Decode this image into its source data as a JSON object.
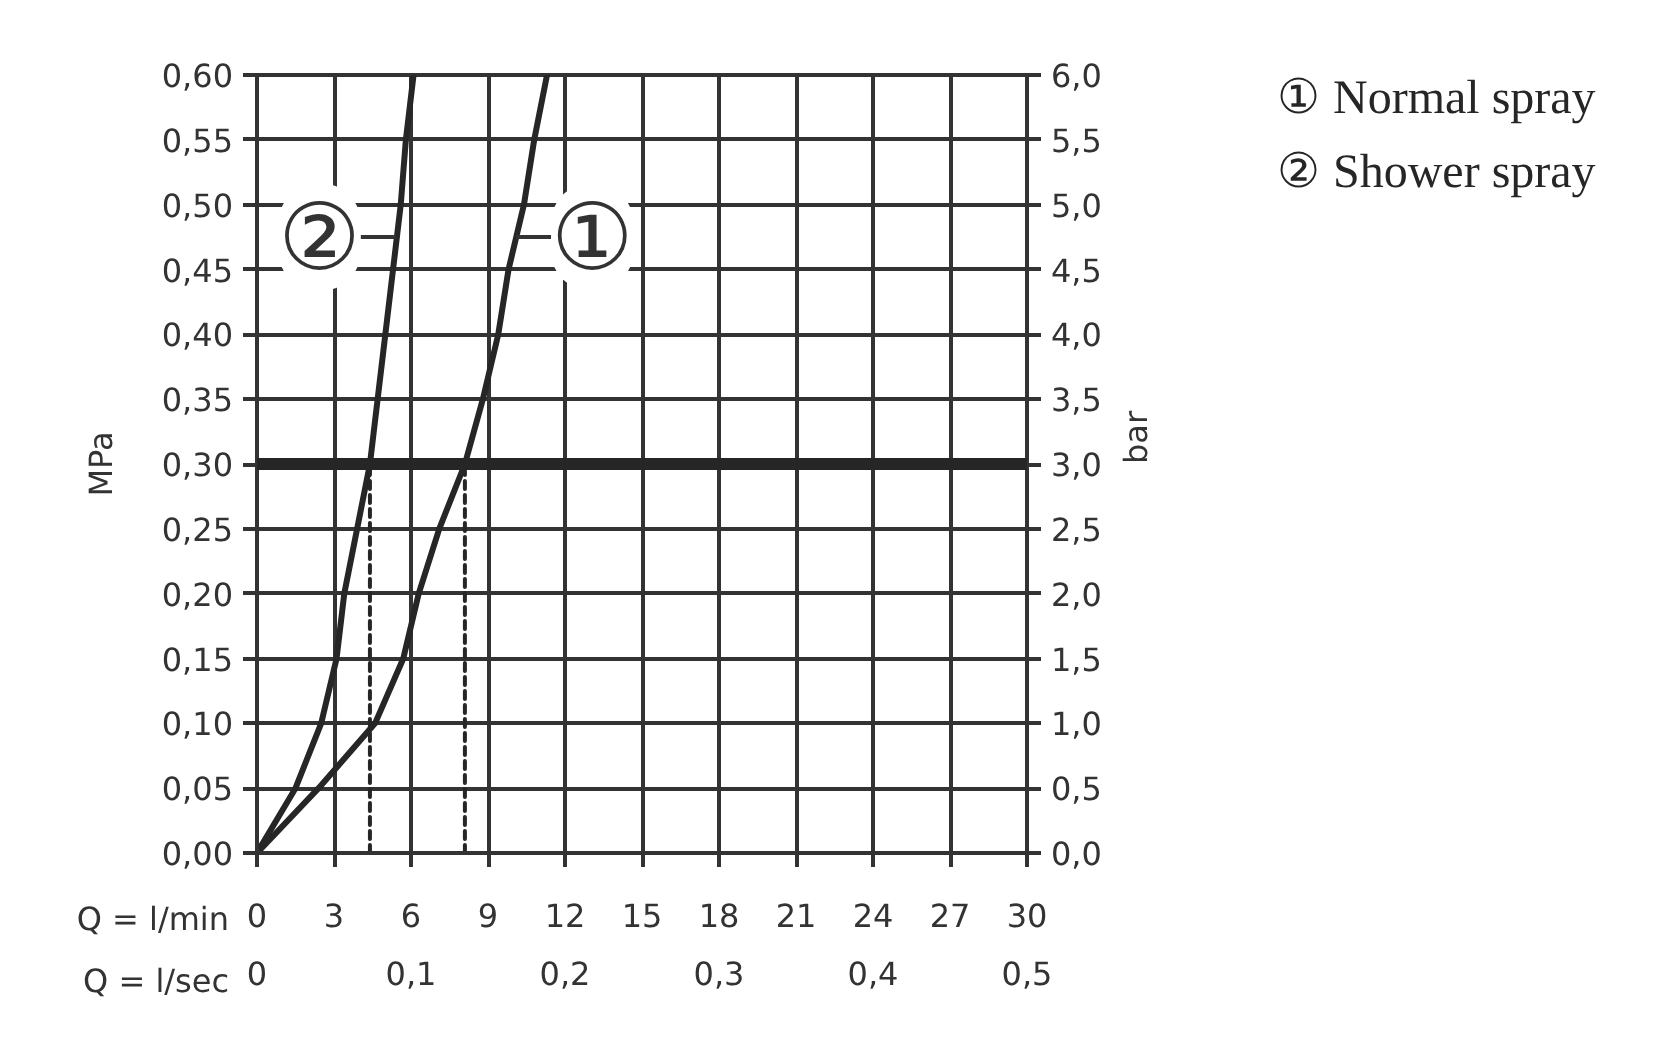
{
  "chart_data": {
    "type": "line",
    "xlabel": "Q = l/min",
    "x2label": "Q = l/sec",
    "ylabel": "MPa",
    "y2label": "bar",
    "xlim": [
      0,
      30
    ],
    "xticks": [
      0,
      3,
      6,
      9,
      12,
      15,
      18,
      21,
      24,
      27,
      30
    ],
    "x2lim": [
      0,
      0.5
    ],
    "x2ticks": [
      0,
      {
        "value": 0.1,
        "label": "0,1"
      },
      {
        "value": 0.2,
        "label": "0,2"
      },
      {
        "value": 0.3,
        "label": "0,3"
      },
      {
        "value": 0.4,
        "label": "0,4"
      },
      {
        "value": 0.5,
        "label": "0,5"
      }
    ],
    "ylim": [
      0,
      0.6
    ],
    "yticks": [
      {
        "value": 0,
        "label": "0,00"
      },
      {
        "value": 0.05,
        "label": "0,05"
      },
      {
        "value": 0.1,
        "label": "0,10"
      },
      {
        "value": 0.15,
        "label": "0,15"
      },
      {
        "value": 0.2,
        "label": "0,20"
      },
      {
        "value": 0.25,
        "label": "0,25"
      },
      {
        "value": 0.3,
        "label": "0,30"
      },
      {
        "value": 0.35,
        "label": "0,35"
      },
      {
        "value": 0.4,
        "label": "0,40"
      },
      {
        "value": 0.45,
        "label": "0,45"
      },
      {
        "value": 0.5,
        "label": "0,50"
      },
      {
        "value": 0.55,
        "label": "0,55"
      },
      {
        "value": 0.6,
        "label": "0,60"
      }
    ],
    "y2lim": [
      0,
      6
    ],
    "y2ticks": [
      {
        "value": 0,
        "label": "0,0"
      },
      {
        "value": 0.5,
        "label": "0,5"
      },
      {
        "value": 1,
        "label": "1,0"
      },
      {
        "value": 1.5,
        "label": "1,5"
      },
      {
        "value": 2,
        "label": "2,0"
      },
      {
        "value": 2.5,
        "label": "2,5"
      },
      {
        "value": 3,
        "label": "3,0"
      },
      {
        "value": 3.5,
        "label": "3,5"
      },
      {
        "value": 4,
        "label": "4,0"
      },
      {
        "value": 4.5,
        "label": "4,5"
      },
      {
        "value": 5,
        "label": "5,0"
      },
      {
        "value": 5.5,
        "label": "5,5"
      },
      {
        "value": 6,
        "label": "6,0"
      }
    ],
    "series": [
      {
        "name": "① Normal spray",
        "color": "#262626",
        "x": [
          0,
          2.4,
          4.6,
          5.7,
          6.3,
          7.1,
          8.1,
          8.8,
          9.4,
          9.8,
          10.4,
          10.8,
          11.3
        ],
        "values": [
          0,
          0.05,
          0.1,
          0.15,
          0.2,
          0.25,
          0.3,
          0.35,
          0.4,
          0.45,
          0.5,
          0.55,
          0.6
        ]
      },
      {
        "name": "② Shower spray",
        "color": "#262626",
        "x": [
          0,
          1.5,
          2.5,
          3.1,
          3.4,
          3.9,
          4.4,
          4.7,
          5.0,
          5.3,
          5.6,
          5.8,
          6.1
        ],
        "values": [
          0,
          0.05,
          0.1,
          0.15,
          0.2,
          0.25,
          0.3,
          0.35,
          0.4,
          0.45,
          0.5,
          0.55,
          0.6
        ]
      },
      {
        "type": "line",
        "color": "#262626",
        "line_style": "dashed",
        "x": [
          4.4,
          4.4
        ],
        "values": [
          0,
          0.3
        ]
      },
      {
        "type": "line",
        "color": "#262626",
        "line_style": "dashed",
        "x": [
          8.1,
          8.1
        ],
        "values": [
          0,
          0.3
        ]
      }
    ],
    "ref_lines": [
      {
        "axis": "y",
        "value": 0.3,
        "color": "#262626"
      }
    ],
    "annotations": [
      {
        "text": "①",
        "x": 10.1,
        "y": 0.475
      },
      {
        "text": "②",
        "x": 5.4,
        "y": 0.475
      }
    ],
    "grid": true
  }
}
